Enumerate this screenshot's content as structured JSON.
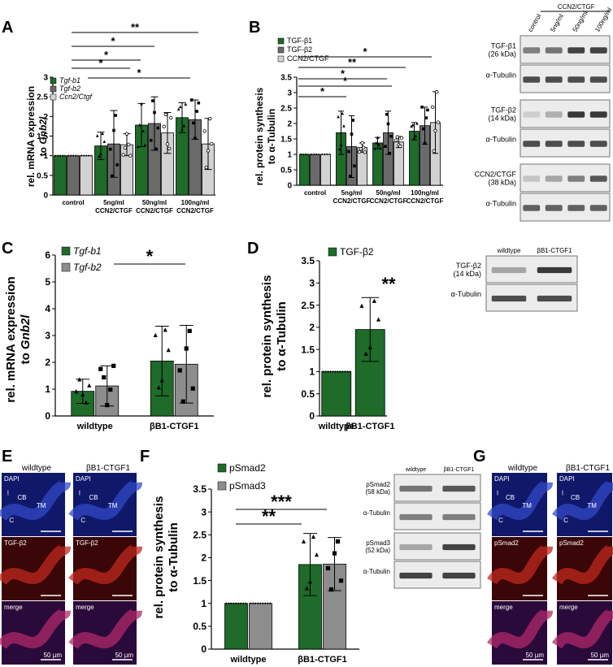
{
  "colors": {
    "green": "#1e6b2a",
    "darkgray": "#6a6a6a",
    "midgray": "#8d8d8d",
    "lightgray": "#d2d2d2",
    "lightgray2": "#c9c9c9",
    "blot_bg": "#ececec",
    "band": "#262626"
  },
  "panels": {
    "A": {
      "letter": "A",
      "ylabel1": "rel. mRNA expression",
      "ylabel2_pre": "to ",
      "ylabel2_em": "Gnb2l"
    },
    "B": {
      "letter": "B",
      "ylabel1": "rel. protein synthesis",
      "ylabel2": "to α-Tubulin"
    },
    "C": {
      "letter": "C",
      "ylabel1": "rel. mRNA expression",
      "ylabel2_pre": "to ",
      "ylabel2_em": "Gnb2l"
    },
    "D": {
      "letter": "D",
      "ylabel1": "rel. protein synthesis",
      "ylabel2": "to α-Tubulin"
    },
    "E": {
      "letter": "E"
    },
    "F": {
      "letter": "F",
      "ylabel1": "rel. protein synthesis",
      "ylabel2": "to α-Tubulin"
    },
    "G": {
      "letter": "G"
    }
  },
  "blots": {
    "B": {
      "header": "CCN2/CTGF",
      "lanes": [
        "control",
        "5ng/ml",
        "50ng/ml",
        "100ng/ml"
      ],
      "rows": [
        {
          "label1": "TGF-β1",
          "label2": "(26 kDa)",
          "intensity": [
            0.55,
            0.6,
            0.85,
            0.85
          ]
        },
        {
          "label1": "α-Tubulin",
          "label2": "",
          "intensity": [
            0.8,
            0.8,
            0.8,
            0.8
          ]
        },
        {
          "label1": "TGF-β2",
          "label2": "(14 kDa)",
          "intensity": [
            0.15,
            0.3,
            0.9,
            0.9
          ]
        },
        {
          "label1": "α-Tubulin",
          "label2": "",
          "intensity": [
            0.8,
            0.8,
            0.8,
            0.8
          ]
        },
        {
          "label1": "CCN2/CTGF",
          "label2": "(38 kDa)",
          "intensity": [
            0.2,
            0.35,
            0.55,
            0.75
          ]
        },
        {
          "label1": "α-Tubulin",
          "label2": "",
          "intensity": [
            0.7,
            0.7,
            0.7,
            0.7
          ]
        }
      ]
    },
    "D": {
      "lanes": [
        "wildtype",
        "βB1-CTGF1"
      ],
      "rows": [
        {
          "label1": "TGF-β2",
          "label2": "(14 kDa)",
          "intensity": [
            0.35,
            0.9
          ]
        },
        {
          "label1": "α-Tubulin",
          "label2": "",
          "intensity": [
            0.8,
            0.8
          ]
        }
      ]
    },
    "F": {
      "lanes": [
        "wildtype",
        "βB1-CTGF1"
      ],
      "rows": [
        {
          "label1": "pSmad2",
          "label2": "(58 kDa)",
          "intensity": [
            0.6,
            0.75
          ]
        },
        {
          "label1": "α-Tubulin",
          "label2": "",
          "intensity": [
            0.55,
            0.55
          ]
        },
        {
          "label1": "pSmad3",
          "label2": "(52 kDa)",
          "intensity": [
            0.35,
            0.85
          ]
        },
        {
          "label1": "α-Tubulin",
          "label2": "",
          "intensity": [
            0.85,
            0.85
          ]
        }
      ]
    }
  },
  "micro": {
    "E": {
      "col_titles": [
        "wildtype",
        "βB1-CTGF1"
      ],
      "rows": [
        {
          "kind": "dapi",
          "tag": "DAPI"
        },
        {
          "kind": "stain",
          "tag": "TGF-β2"
        },
        {
          "kind": "merge",
          "tag": "merge"
        }
      ],
      "anno": {
        "l": "l",
        "cb": "CB",
        "tm": "TM",
        "c": "C"
      },
      "scale": "50 µm"
    },
    "G": {
      "col_titles": [
        "wildtype",
        "βB1-CTGF1"
      ],
      "rows": [
        {
          "kind": "dapi",
          "tag": "DAPI"
        },
        {
          "kind": "stain",
          "tag": "pSmad2"
        },
        {
          "kind": "merge",
          "tag": "merge"
        }
      ],
      "anno": {
        "l": "l",
        "cb": "CB",
        "tm": "TM",
        "c": "C"
      },
      "scale": "50 µm"
    }
  },
  "chart_data": [
    {
      "panel": "A",
      "type": "bar",
      "ylim": [
        0,
        3.0
      ],
      "yticks": [
        0.0,
        0.5,
        1.0,
        1.5,
        2.0,
        2.5,
        3.0
      ],
      "categories": [
        [
          "control"
        ],
        [
          "5ng/ml",
          "CCN2/CTGF"
        ],
        [
          "50ng/ml",
          "CCN2/CTGF"
        ],
        [
          "100ng/ml",
          "CCN2/CTGF"
        ]
      ],
      "series": [
        {
          "name": "Tgf-b1",
          "italic": true,
          "color": "green",
          "values": [
            1.0,
            1.25,
            1.78,
            1.97
          ],
          "err": [
            0,
            0.35,
            0.55,
            0.38
          ]
        },
        {
          "name": "Tgf-b2",
          "italic": true,
          "color": "darkgray",
          "values": [
            1.0,
            1.3,
            1.82,
            1.92
          ],
          "err": [
            0,
            0.85,
            0.68,
            0.5
          ]
        },
        {
          "name": "Ccn2/Ctgf",
          "italic": true,
          "color": "lightgray",
          "values": [
            1.0,
            1.28,
            1.58,
            1.3
          ],
          "err": [
            0,
            0.28,
            0.52,
            0.65
          ]
        }
      ],
      "significance": [
        "**",
        "*",
        "*",
        "*",
        "*"
      ]
    },
    {
      "panel": "B",
      "type": "bar",
      "ylim": [
        0,
        3.5
      ],
      "yticks": [
        0.0,
        0.5,
        1.0,
        1.5,
        2.0,
        2.5,
        3.0,
        3.5
      ],
      "categories": [
        [
          "control"
        ],
        [
          "5ng/ml",
          "CCN2/CTGF"
        ],
        [
          "50ng/ml",
          "CCN2/CTGF"
        ],
        [
          "100ng/ml",
          "CCN2/CTGF"
        ]
      ],
      "series": [
        {
          "name": "TGF-β1",
          "italic": false,
          "color": "green",
          "values": [
            1.0,
            1.7,
            1.37,
            1.75
          ],
          "err": [
            0,
            0.7,
            0.18,
            0.28
          ]
        },
        {
          "name": "TGF-β2",
          "italic": false,
          "color": "darkgray",
          "values": [
            1.0,
            1.25,
            1.7,
            1.93
          ],
          "err": [
            0,
            1.0,
            0.7,
            0.6
          ]
        },
        {
          "name": "CCN2/CTGF",
          "italic": false,
          "color": "lightgray",
          "values": [
            1.0,
            1.22,
            1.4,
            2.03
          ],
          "err": [
            0,
            0.15,
            0.18,
            1.0
          ]
        }
      ],
      "significance": [
        "*",
        "**",
        "*",
        "*",
        "*"
      ]
    },
    {
      "panel": "C",
      "type": "bar",
      "ylim": [
        0,
        6
      ],
      "yticks": [
        0,
        1,
        2,
        3,
        4,
        5,
        6
      ],
      "categories": [
        [
          "wildtype"
        ],
        [
          "βB1-CTGF1"
        ]
      ],
      "series": [
        {
          "name": "Tgf-b1",
          "italic": true,
          "color": "green",
          "values": [
            0.92,
            2.05
          ],
          "err": [
            0.45,
            1.3
          ]
        },
        {
          "name": "Tgf-b2",
          "italic": true,
          "color": "midgray",
          "values": [
            1.12,
            1.93
          ],
          "err": [
            0.75,
            1.45
          ]
        }
      ],
      "significance": [
        "*"
      ]
    },
    {
      "panel": "D",
      "type": "bar",
      "ylim": [
        0,
        3.5
      ],
      "yticks": [
        0.0,
        0.5,
        1.0,
        1.5,
        2.0,
        2.5,
        3.0,
        3.5
      ],
      "categories": [
        [
          "wildtype"
        ],
        [
          "βB1-CTGF1"
        ]
      ],
      "series": [
        {
          "name": "TGF-β2",
          "italic": false,
          "color": "green",
          "values": [
            1.0,
            1.95
          ],
          "err": [
            0,
            0.72
          ]
        }
      ],
      "significance": [
        "**"
      ]
    },
    {
      "panel": "F",
      "type": "bar",
      "ylim": [
        0,
        3.5
      ],
      "yticks": [
        0.0,
        0.5,
        1.0,
        1.5,
        2.0,
        2.5,
        3.0,
        3.5
      ],
      "categories": [
        [
          "wildtype"
        ],
        [
          "βB1-CTGF1"
        ]
      ],
      "series": [
        {
          "name": "pSmad2",
          "italic": false,
          "color": "green",
          "values": [
            1.0,
            1.85
          ],
          "err": [
            0,
            0.68
          ]
        },
        {
          "name": "pSmad3",
          "italic": false,
          "color": "midgray",
          "values": [
            1.0,
            1.86
          ],
          "err": [
            0,
            0.58
          ]
        }
      ],
      "significance": [
        "**",
        "***"
      ]
    }
  ]
}
